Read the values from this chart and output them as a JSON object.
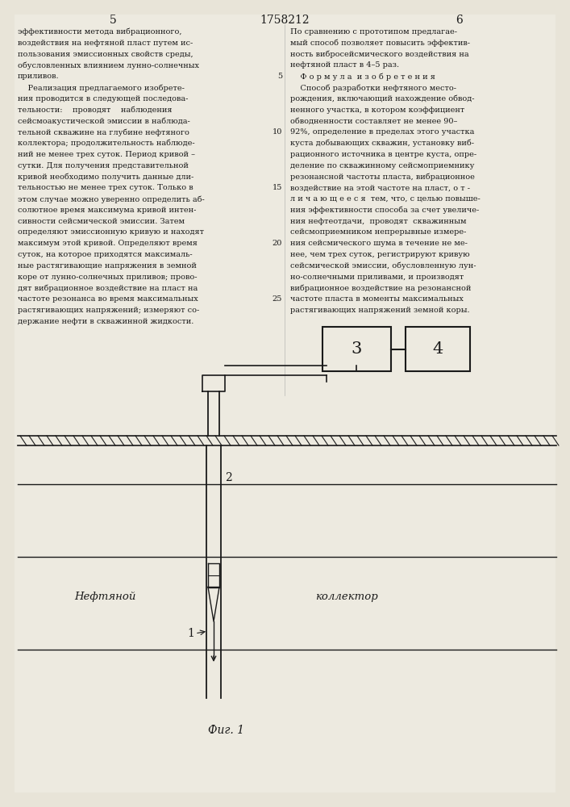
{
  "bg_color": "#f0ede6",
  "page_bg": "#ede9e0",
  "title": "1758212",
  "left_lines": [
    "эффективности метода вибрационного,",
    "воздействия на нефтяной пласт путем ис-",
    "пользования эмиссионных свойств среды,",
    "обусловленных влиянием лунно-солнечных",
    "приливов.",
    "    Реализация предлагаемого изобрете-",
    "ния проводится в следующей последова-",
    "тельности:    проводят    наблюдения",
    "сейсмоакустической эмиссии в наблюда-",
    "тельной скважине на глубине нефтяного",
    "коллектора; продолжительность наблюде-",
    "ний не менее трех суток. Период кривой –",
    "сутки. Для получения представительной",
    "кривой необходимо получить данные дли-",
    "тельностью не менее трех суток. Только в",
    "этом случае можно уверенно определить аб-",
    "солютное время максимума кривой интен-",
    "сивности сейсмической эмиссии. Затем",
    "определяют эмиссионную кривую и находят",
    "максимум этой кривой. Определяют время",
    "суток, на которое приходятся максималь-",
    "ные растягивающие напряжения в земной",
    "коре от лунно-солнечных приливов; прово-",
    "дят вибрационное воздействие на пласт на",
    "частоте резонанса во время максимальных",
    "растягивающих напряжений; измеряют со-",
    "держание нефти в скважинной жидкости."
  ],
  "right_lines": [
    "По сравнению с прототипом предлагае-",
    "мый способ позволяет повысить эффектив-",
    "ность вибросейсмического воздействия на",
    "нефтяной пласт в 4–5 раз.",
    "    Ф о р м у л а  и з о б р е т е н и я",
    "    Способ разработки нефтяного место-",
    "рождения, включающий нахождение обвод-",
    "ненного участка, в котором коэффициент",
    "обводненности составляет не менее 90–",
    "92%, определение в пределах этого участка",
    "куста добывающих скважин, установку виб-",
    "рационного источника в центре куста, опре-",
    "деление по скважинному сейсмоприемнику",
    "резонансной частоты пласта, вибрационное",
    "воздействие на этой частоте на пласт, о т -",
    "л и ч а ю щ е е с я  тем, что, с целью повыше-",
    "ния эффективности способа за счет увеличе-",
    "ния нефтеотдачи,  проводят  скважинным",
    "сейсмоприемником непрерывные измере-",
    "ния сейсмического шума в течение не ме-",
    "нее, чем трех суток, регистрируют кривую",
    "сейсмической эмиссии, обусловленную лун-",
    "но-солнечными приливами, и производят",
    "вибрационное воздействие на резонансной",
    "частоте пласта в моменты максимальных",
    "растягивающих напряжений земной коры."
  ],
  "fig_caption": "Фиг. 1",
  "line_color": "#1a1a1a",
  "text_color": "#1a1a1a"
}
